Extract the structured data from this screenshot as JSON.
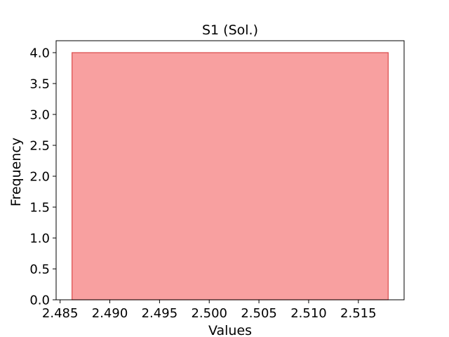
{
  "chart_data": {
    "type": "bar",
    "title": "S1 (Sol.)",
    "xlabel": "Values",
    "ylabel": "Frequency",
    "bins": [
      {
        "x_start": 2.4862,
        "x_end": 2.518,
        "count": 4.0
      }
    ],
    "xlim": [
      2.4846,
      2.5196
    ],
    "ylim": [
      0.0,
      4.0
    ],
    "xticks": [
      2.485,
      2.49,
      2.495,
      2.5,
      2.505,
      2.51,
      2.515
    ],
    "xtick_labels": [
      "2.485",
      "2.490",
      "2.495",
      "2.500",
      "2.505",
      "2.510",
      "2.515"
    ],
    "yticks": [
      0.0,
      0.5,
      1.0,
      1.5,
      2.0,
      2.5,
      3.0,
      3.5,
      4.0
    ],
    "ytick_labels": [
      "0.0",
      "0.5",
      "1.0",
      "1.5",
      "2.0",
      "2.5",
      "3.0",
      "3.5",
      "4.0"
    ],
    "bar_fill": "#f8a0a0",
    "bar_edge": "#d94a4a",
    "grid": false,
    "legend": "none"
  }
}
